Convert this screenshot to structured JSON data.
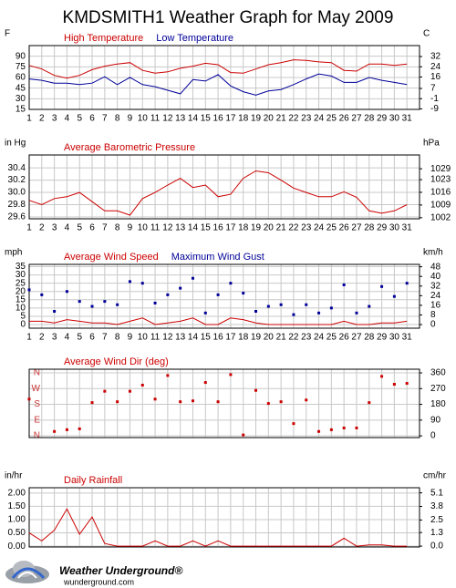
{
  "title": "KMDSMITH1 Weather Graph for May 2009",
  "footer": {
    "brand": "Weather Underground®",
    "site": "wunderground.com"
  },
  "chart_data": [
    {
      "type": "line",
      "ylabel": "F",
      "y2label": "C",
      "xlim": [
        1,
        32
      ],
      "xticks": [
        1,
        2,
        3,
        4,
        5,
        6,
        7,
        8,
        9,
        10,
        11,
        12,
        13,
        14,
        15,
        16,
        17,
        18,
        19,
        20,
        21,
        22,
        23,
        24,
        25,
        26,
        27,
        28,
        29,
        30,
        31
      ],
      "ylim": [
        15,
        105
      ],
      "yticks": [
        90,
        75,
        60,
        45,
        30,
        15
      ],
      "y2lim": [
        -9.4,
        40.6
      ],
      "y2ticks": [
        32,
        24,
        16,
        7,
        -1,
        -9
      ],
      "grid": true,
      "series": [
        {
          "name": "High Temperature",
          "color": "#cc0000",
          "values": [
            77,
            72,
            63,
            59,
            63,
            71,
            76,
            79,
            81,
            70,
            66,
            68,
            73,
            76,
            80,
            78,
            67,
            66,
            72,
            78,
            81,
            85,
            84,
            82,
            81,
            70,
            69,
            79,
            79,
            77,
            79
          ]
        },
        {
          "name": "Low Temperature",
          "color": "#000099",
          "values": [
            58,
            56,
            52,
            52,
            50,
            52,
            61,
            50,
            60,
            50,
            47,
            42,
            37,
            57,
            55,
            64,
            48,
            40,
            35,
            41,
            43,
            50,
            58,
            65,
            62,
            53,
            53,
            60,
            56,
            53,
            50
          ]
        }
      ]
    },
    {
      "type": "line",
      "ylabel": "in Hg",
      "y2label": "hPa",
      "xlim": [
        1,
        32
      ],
      "xticks": [
        1,
        2,
        3,
        4,
        5,
        6,
        7,
        8,
        9,
        10,
        11,
        12,
        13,
        14,
        15,
        16,
        17,
        18,
        19,
        20,
        21,
        22,
        23,
        24,
        25,
        26,
        27,
        28,
        29,
        30,
        31
      ],
      "ylim": [
        29.57,
        30.61
      ],
      "yticks": [
        30.4,
        30.2,
        {
          "value": 30.0,
          "label": "30.0"
        },
        29.8,
        29.6
      ],
      "y2lim": [
        1001.4,
        1036.6
      ],
      "y2ticks": [
        1029,
        1023,
        1016,
        1009,
        1002
      ],
      "grid": true,
      "series": [
        {
          "name": "Average Barometric Pressure",
          "color": "#cc0000",
          "values": [
            29.87,
            29.8,
            29.9,
            29.93,
            30.0,
            29.85,
            29.7,
            29.7,
            29.63,
            29.9,
            30.0,
            30.12,
            30.23,
            30.08,
            30.12,
            29.93,
            29.97,
            30.23,
            30.35,
            30.32,
            30.2,
            30.07,
            30.0,
            29.93,
            29.93,
            30.01,
            29.92,
            29.7,
            29.66,
            29.7,
            29.8
          ]
        }
      ]
    },
    {
      "type": "line",
      "ylabel": "mph",
      "y2label": "km/h",
      "xlim": [
        1,
        32
      ],
      "xticks": [
        1,
        2,
        3,
        4,
        5,
        6,
        7,
        8,
        9,
        10,
        11,
        12,
        13,
        14,
        15,
        16,
        17,
        18,
        19,
        20,
        21,
        22,
        23,
        24,
        25,
        26,
        27,
        28,
        29,
        30,
        31
      ],
      "ylim": [
        -2.2,
        36.4
      ],
      "yticks": [
        35,
        30,
        25,
        20,
        15,
        10,
        5,
        0
      ],
      "y2lim": [
        -3,
        50
      ],
      "y2ticks": [
        48,
        40,
        32,
        24,
        16,
        8,
        0
      ],
      "grid": true,
      "series": [
        {
          "name": "Average Wind Speed",
          "color": "#cc0000",
          "values": [
            2,
            2,
            1,
            3,
            2,
            1,
            1,
            0,
            2,
            4,
            0,
            1,
            2,
            4,
            0,
            0,
            4,
            3,
            1,
            0,
            0,
            0,
            0,
            0,
            0,
            2,
            0,
            0,
            1,
            1,
            2
          ]
        },
        {
          "name": "Maximum Wind Gust",
          "color": "#000099",
          "type": "scatter",
          "values": [
            21,
            18,
            8,
            20,
            14,
            11,
            14,
            12,
            26,
            25,
            13,
            18,
            22,
            28,
            7,
            18,
            25,
            19,
            8,
            11,
            12,
            6,
            12,
            7,
            10,
            24,
            7,
            11,
            23,
            17,
            25
          ]
        }
      ]
    },
    {
      "type": "scatter",
      "xlim": [
        1,
        32
      ],
      "ylim": [
        -10,
        381
      ],
      "ytick_color": "#cc3333",
      "yticks": [
        {
          "value": 360,
          "label": "N"
        },
        {
          "value": 270,
          "label": "W"
        },
        {
          "value": 180,
          "label": "S"
        },
        {
          "value": 90,
          "label": "E"
        },
        {
          "value": 0,
          "label": "N"
        }
      ],
      "y2lim": [
        -10,
        381
      ],
      "y2ticks": [
        360,
        270,
        180,
        90,
        0
      ],
      "grid": true,
      "series": [
        {
          "name": "Average Wind Dir (deg)",
          "color": "#cc0000",
          "values": [
            210,
            null,
            25,
            35,
            40,
            190,
            255,
            195,
            255,
            290,
            210,
            345,
            195,
            200,
            305,
            195,
            350,
            5,
            260,
            185,
            195,
            70,
            205,
            25,
            35,
            45,
            45,
            190,
            340,
            295,
            300
          ]
        }
      ]
    },
    {
      "type": "line",
      "ylabel": "in/hr",
      "y2label": "cm/hr",
      "xlim": [
        1,
        32
      ],
      "ylim": [
        -0.03,
        2.2
      ],
      "yticks": [
        {
          "value": 2,
          "label": "2.00"
        },
        {
          "value": 1.5,
          "label": "1.50"
        },
        {
          "value": 1,
          "label": "1.00"
        },
        {
          "value": 0.5,
          "label": "0.50"
        },
        {
          "value": 0,
          "label": "0.00"
        }
      ],
      "y2lim": [
        -0.08,
        5.59
      ],
      "y2ticks": [
        5.1,
        3.8,
        2.5,
        1.3,
        {
          "value": 0,
          "label": "0.0"
        }
      ],
      "grid": true,
      "series": [
        {
          "name": "Daily Rainfall",
          "color": "#cc0000",
          "values": [
            0.5,
            0.2,
            0.6,
            1.4,
            0.45,
            1.1,
            0.1,
            0,
            0,
            0,
            0.2,
            0,
            0,
            0.2,
            0,
            0.2,
            0,
            0,
            0,
            0,
            0,
            0,
            0,
            0,
            0,
            0.3,
            0,
            0.05,
            0.05,
            0,
            0
          ]
        }
      ]
    }
  ]
}
